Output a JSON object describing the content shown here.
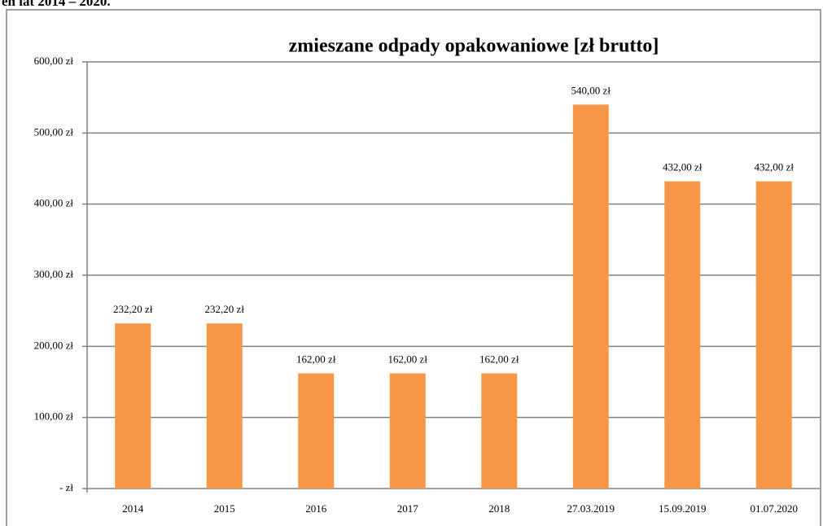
{
  "heading": "eń lat 2014 – 2020.",
  "chart_data": {
    "type": "bar",
    "title": "zmieszane odpady opakowaniowe [zł brutto]",
    "categories": [
      "2014",
      "2015",
      "2016",
      "2017",
      "2018",
      "27.03.2019",
      "15.09.2019",
      "01.07.2020"
    ],
    "values": [
      232.2,
      232.2,
      162,
      162,
      162,
      540,
      432,
      432
    ],
    "value_labels": [
      "232,20 zł",
      "232,20 zł",
      "162,00 zł",
      "162,00 zł",
      "162,00 zł",
      "540,00 zł",
      "432,00 zł",
      "432,00 zł"
    ],
    "color": "#f79646",
    "ylim": [
      0,
      600
    ],
    "yticks": [
      {
        "value": 0,
        "label": "-   zł"
      },
      {
        "value": 100,
        "label": "100,00 zł"
      },
      {
        "value": 200,
        "label": "200,00 zł"
      },
      {
        "value": 300,
        "label": "300,00 zł"
      },
      {
        "value": 400,
        "label": "400,00 zł"
      },
      {
        "value": 500,
        "label": "500,00 zł"
      },
      {
        "value": 600,
        "label": "600,00 zł"
      }
    ],
    "grid": true
  }
}
